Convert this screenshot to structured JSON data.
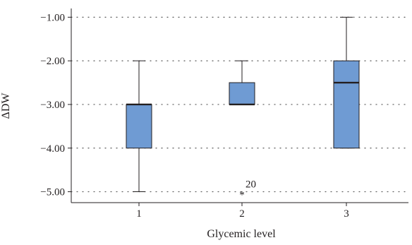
{
  "chart_data": {
    "type": "boxplot",
    "xlabel": "Glycemic level",
    "ylabel": "ΔDW",
    "ylim": [
      -5.25,
      -0.8
    ],
    "yticks": [
      -1.0,
      -2.0,
      -3.0,
      -4.0,
      -5.0
    ],
    "ytick_labels": [
      "−1.00",
      "−2.00",
      "−3.00",
      "−4.00",
      "−5.00"
    ],
    "categories": [
      "1",
      "2",
      "3"
    ],
    "grid": "horizontal-dotted",
    "box_color": "#6f9bd3",
    "boxes": [
      {
        "category": "1",
        "whisker_low": -5.0,
        "q1": -4.0,
        "median": -3.0,
        "q3": -3.0,
        "whisker_high": -2.0
      },
      {
        "category": "2",
        "whisker_low": -3.0,
        "q1": -3.0,
        "median": -3.0,
        "q3": -2.5,
        "whisker_high": -2.0
      },
      {
        "category": "3",
        "whisker_low": -4.0,
        "q1": -4.0,
        "median": -2.5,
        "q3": -2.0,
        "whisker_high": -1.0
      }
    ],
    "outliers": [
      {
        "category": "2",
        "value": -5.0,
        "label": "20"
      }
    ]
  }
}
